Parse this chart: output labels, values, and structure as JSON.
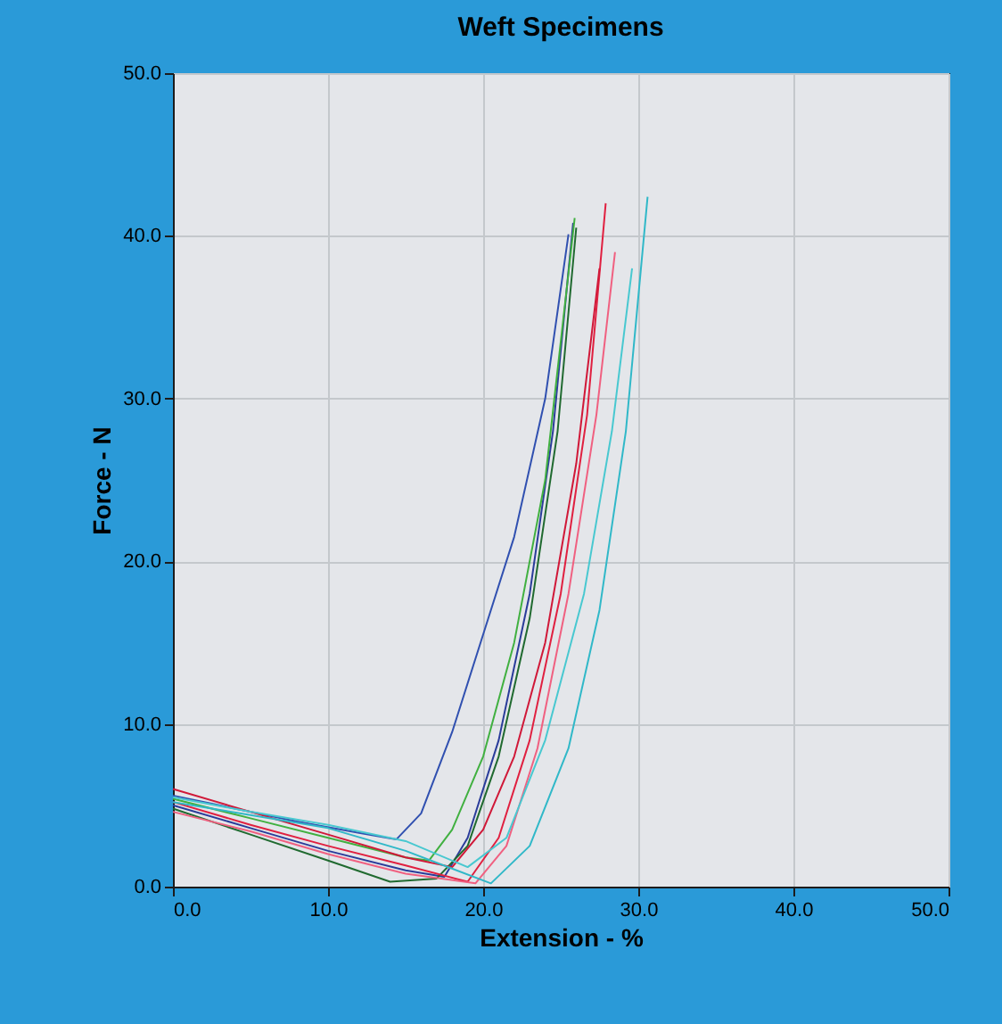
{
  "chart_data": {
    "type": "line",
    "title": "Weft Specimens",
    "xlabel": "Extension - %",
    "ylabel": "Force - N",
    "xlim": [
      0,
      50
    ],
    "ylim": [
      0,
      50
    ],
    "xticks": [
      {
        "value": 0,
        "label": "0.0"
      },
      {
        "value": 10,
        "label": "10.0"
      },
      {
        "value": 20,
        "label": "20.0"
      },
      {
        "value": 30,
        "label": "30.0"
      },
      {
        "value": 40,
        "label": "40.0"
      },
      {
        "value": 50,
        "label": "50.0"
      }
    ],
    "yticks": [
      {
        "value": 0,
        "label": "0.0"
      },
      {
        "value": 10,
        "label": "10.0"
      },
      {
        "value": 20,
        "label": "20.0"
      },
      {
        "value": 30,
        "label": "30.0"
      },
      {
        "value": 40,
        "label": "40.0"
      },
      {
        "value": 50,
        "label": "50.0"
      }
    ],
    "grid": true,
    "series": [
      {
        "color": "#3050b0",
        "x": [
          0,
          4,
          8,
          12,
          14.4,
          16,
          18,
          20,
          22,
          24,
          25.5
        ],
        "values": [
          5.6,
          4.8,
          4.0,
          3.3,
          2.9,
          4.5,
          9.5,
          15.5,
          21.5,
          30,
          40.1
        ]
      },
      {
        "color": "#2a3c9a",
        "x": [
          0,
          5,
          10,
          15,
          17.5,
          19,
          21,
          23,
          24.5,
          25.8
        ],
        "values": [
          5.0,
          3.6,
          2.2,
          1.0,
          0.6,
          3.0,
          9,
          18,
          28,
          40.8
        ]
      },
      {
        "color": "#40b040",
        "x": [
          0,
          5,
          10,
          15,
          16.5,
          18,
          20,
          22,
          24,
          25.9
        ],
        "values": [
          5.4,
          4.2,
          3.0,
          1.8,
          1.6,
          3.5,
          8,
          15,
          25,
          41.1
        ]
      },
      {
        "color": "#206a30",
        "x": [
          0,
          5,
          10,
          14,
          17,
          19,
          21,
          23,
          24.8,
          26
        ],
        "values": [
          4.8,
          3.2,
          1.6,
          0.3,
          0.5,
          2.5,
          8,
          16.5,
          28,
          40.5
        ]
      },
      {
        "color": "#e02040",
        "x": [
          0,
          5,
          10,
          15,
          19,
          21,
          23,
          25,
          26.7,
          27.9
        ],
        "values": [
          5.2,
          3.8,
          2.5,
          1.3,
          0.3,
          3,
          9,
          18,
          29,
          42.0
        ]
      },
      {
        "color": "#f06080",
        "x": [
          0,
          5,
          10,
          15,
          19.5,
          21.5,
          23.5,
          25.5,
          27.3,
          28.5
        ],
        "values": [
          4.6,
          3.4,
          2.0,
          0.8,
          0.2,
          2.5,
          8.5,
          18,
          29,
          39.0
        ]
      },
      {
        "color": "#d01838",
        "x": [
          0,
          5,
          10,
          15,
          18,
          20,
          22,
          24,
          26,
          27.5
        ],
        "values": [
          6.0,
          4.6,
          3.2,
          1.8,
          1.2,
          3.5,
          8,
          15,
          26,
          38
        ]
      },
      {
        "color": "#30b8c8",
        "x": [
          0,
          5,
          10,
          15,
          20.5,
          23,
          25.5,
          27.5,
          29.2,
          30.6
        ],
        "values": [
          5.2,
          4.4,
          3.6,
          2.2,
          0.2,
          2.5,
          8.5,
          17,
          28,
          42.4
        ]
      },
      {
        "color": "#48c8d0",
        "x": [
          0,
          5,
          10,
          15,
          19,
          21.5,
          24,
          26.5,
          28.3,
          29.6
        ],
        "values": [
          5.5,
          4.6,
          3.8,
          2.8,
          1.2,
          3,
          9,
          18,
          28,
          38
        ]
      }
    ]
  }
}
